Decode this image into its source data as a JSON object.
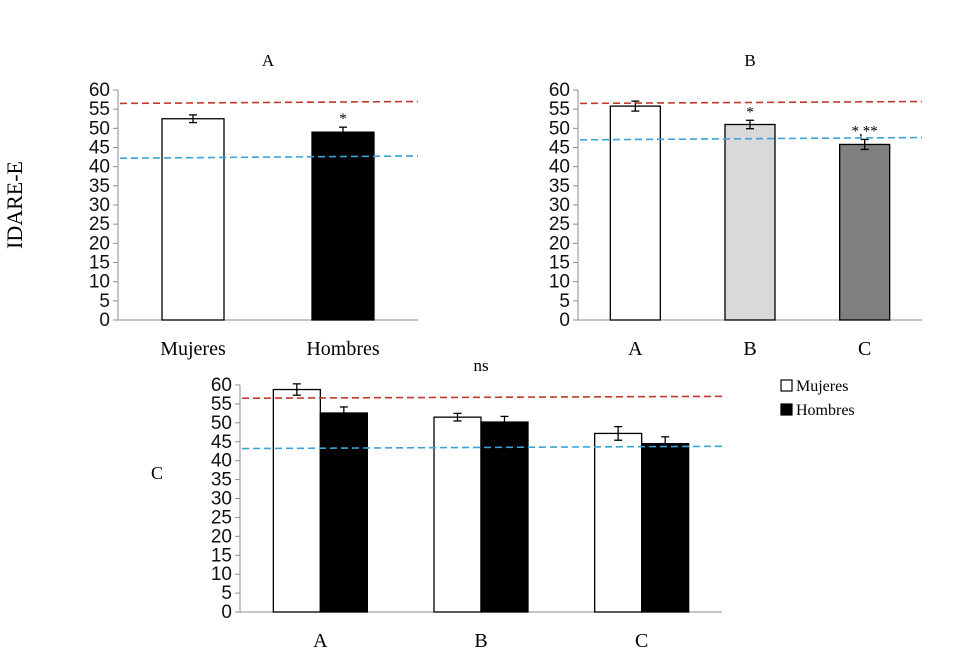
{
  "ylabel": "IDARE-E",
  "chart_data": [
    {
      "type": "bar",
      "title": "A",
      "categories": [
        "Mujeres",
        "Hombres"
      ],
      "values": [
        52.5,
        49
      ],
      "errors": [
        1,
        1.3
      ],
      "bar_colors": [
        "#ffffff",
        "#000000"
      ],
      "significance": [
        "",
        "*"
      ],
      "ylim": [
        0,
        60
      ],
      "yticks": [
        0,
        5,
        10,
        15,
        20,
        25,
        30,
        35,
        40,
        45,
        50,
        55,
        60
      ],
      "reference_lines": [
        {
          "color": "#c0392b",
          "y_start": 56.5,
          "y_end": 57
        },
        {
          "color": "#3aa3d8",
          "y_start": 42.2,
          "y_end": 42.8
        }
      ]
    },
    {
      "type": "bar",
      "title": "B",
      "categories": [
        "A",
        "B",
        "C"
      ],
      "values": [
        55.8,
        51,
        45.8
      ],
      "errors": [
        1.3,
        1.1,
        1.3
      ],
      "bar_colors": [
        "#ffffff",
        "#d9d9d9",
        "#7f7f7f"
      ],
      "significance": [
        "",
        "*",
        "*,**"
      ],
      "ylim": [
        0,
        60
      ],
      "yticks": [
        0,
        5,
        10,
        15,
        20,
        25,
        30,
        35,
        40,
        45,
        50,
        55,
        60
      ],
      "reference_lines": [
        {
          "color": "#c0392b",
          "y_start": 56.5,
          "y_end": 57
        },
        {
          "color": "#3aa3d8",
          "y_start": 47,
          "y_end": 47.6
        }
      ]
    },
    {
      "type": "bar",
      "title": "ns",
      "side_label": "C",
      "categories": [
        "A",
        "B",
        "C"
      ],
      "series": [
        {
          "name": "Mujeres",
          "values": [
            58.8,
            51.5,
            47.2
          ],
          "errors": [
            1.5,
            1,
            1.8
          ],
          "color": "#ffffff"
        },
        {
          "name": "Hombres",
          "values": [
            52.6,
            50.2,
            44.5
          ],
          "errors": [
            1.6,
            1.5,
            1.8
          ],
          "color": "#000000"
        }
      ],
      "ylim": [
        0,
        60
      ],
      "yticks": [
        0,
        5,
        10,
        15,
        20,
        25,
        30,
        35,
        40,
        45,
        50,
        55,
        60
      ],
      "legend": "right",
      "reference_lines": [
        {
          "color": "#c0392b",
          "y_start": 56.5,
          "y_end": 57
        },
        {
          "color": "#3aa3d8",
          "y_start": 43.2,
          "y_end": 43.8
        }
      ]
    }
  ]
}
